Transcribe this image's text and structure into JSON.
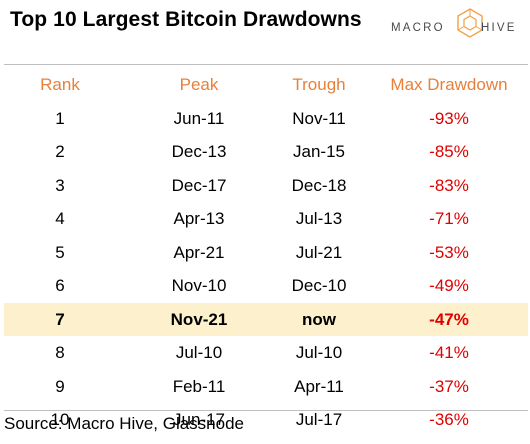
{
  "title": "Top 10 Largest Bitcoin Drawdowns",
  "logo": {
    "left_text": "MACRO",
    "right_text": "HIVE"
  },
  "colors": {
    "header": "#e8803a",
    "drawdown": "#e00000",
    "highlight": "#fdf0cc"
  },
  "chart_data": {
    "type": "table",
    "title": "Top 10 Largest Bitcoin Drawdowns",
    "columns": [
      "Rank",
      "Peak",
      "Trough",
      "Max Drawdown"
    ],
    "rows": [
      [
        "1",
        "Jun-11",
        "Nov-11",
        "-93%"
      ],
      [
        "2",
        "Dec-13",
        "Jan-15",
        "-85%"
      ],
      [
        "3",
        "Dec-17",
        "Dec-18",
        "-83%"
      ],
      [
        "4",
        "Apr-13",
        "Jul-13",
        "-71%"
      ],
      [
        "5",
        "Apr-21",
        "Jul-21",
        "-53%"
      ],
      [
        "6",
        "Nov-10",
        "Dec-10",
        "-49%"
      ],
      [
        "7",
        "Nov-21",
        "now",
        "-47%"
      ],
      [
        "8",
        "Jul-10",
        "Jul-10",
        "-41%"
      ],
      [
        "9",
        "Feb-11",
        "Apr-11",
        "-37%"
      ],
      [
        "10",
        "Jun-17",
        "Jul-17",
        "-36%"
      ]
    ],
    "highlighted_rank": "7"
  },
  "source": "Source: Macro Hive, Glassnode"
}
